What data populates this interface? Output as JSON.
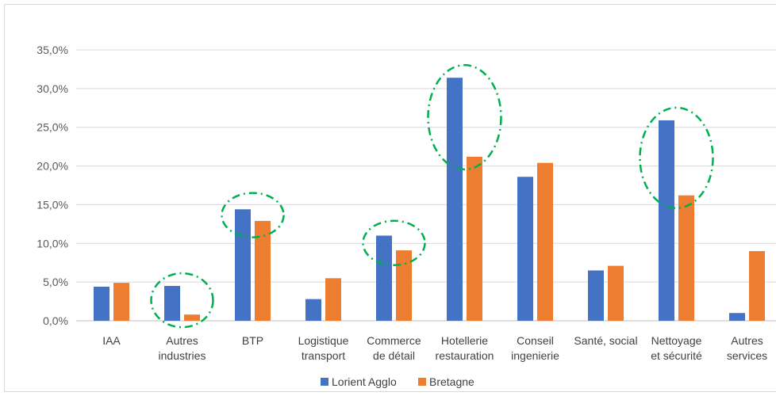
{
  "chart_data": {
    "type": "bar",
    "categories": [
      [
        "IAA"
      ],
      [
        "Autres",
        "industries"
      ],
      [
        "BTP"
      ],
      [
        "Logistique",
        "transport"
      ],
      [
        "Commerce",
        "de détail"
      ],
      [
        "Hotellerie",
        "restauration"
      ],
      [
        "Conseil",
        "ingenierie"
      ],
      [
        "Santé, social"
      ],
      [
        "Nettoyage",
        "et sécurité"
      ],
      [
        "Autres",
        "services"
      ]
    ],
    "series": [
      {
        "name": "Lorient Agglo",
        "color": "#4472C4",
        "values": [
          4.4,
          4.5,
          14.4,
          2.8,
          11.0,
          31.4,
          18.6,
          6.5,
          25.9,
          1.0
        ]
      },
      {
        "name": "Bretagne",
        "color": "#ED7D31",
        "values": [
          4.9,
          0.8,
          12.9,
          5.5,
          9.1,
          21.2,
          20.4,
          7.1,
          16.2,
          9.0
        ]
      }
    ],
    "yticks": [
      "0,0%",
      "5,0%",
      "10,0%",
      "15,0%",
      "20,0%",
      "25,0%",
      "30,0%",
      "35,0%"
    ],
    "ylim": [
      0,
      35
    ],
    "grid": true,
    "legend_position": "bottom-center",
    "highlight_color": "#00B050",
    "highlighted_categories": [
      1,
      2,
      4,
      5,
      8
    ]
  }
}
